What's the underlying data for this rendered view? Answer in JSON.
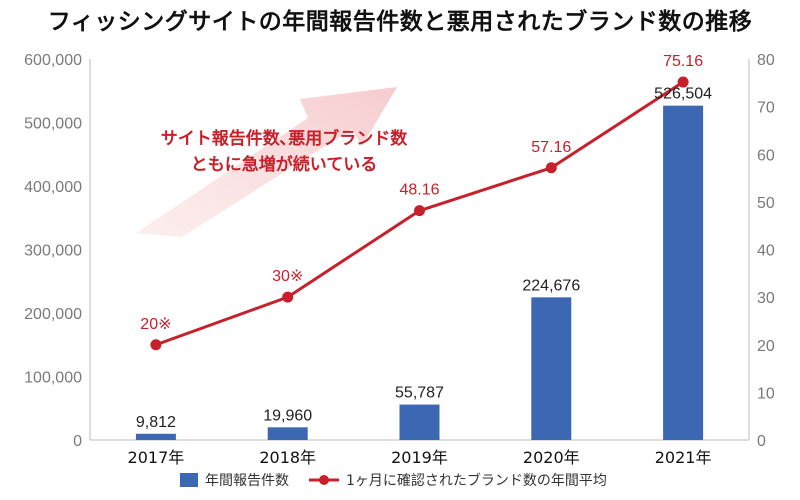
{
  "chart_data": {
    "type": "bar",
    "title": "フィッシングサイトの年間報告件数と悪用されたブランド数の推移",
    "categories": [
      "2017年",
      "2018年",
      "2019年",
      "2020年",
      "2021年"
    ],
    "series": [
      {
        "name": "年間報告件数",
        "type": "bar",
        "axis": "left",
        "color": "#3b67b3",
        "values": [
          9812,
          19960,
          55787,
          224676,
          526504
        ],
        "labels": [
          "9,812",
          "19,960",
          "55,787",
          "224,676",
          "526,504"
        ]
      },
      {
        "name": "1ヶ月に確認されたブランド数の年間平均",
        "type": "line",
        "axis": "right",
        "color": "#c8202a",
        "values": [
          20,
          30,
          48.16,
          57.16,
          75.16
        ],
        "labels": [
          "20※",
          "30※",
          "48.16",
          "57.16",
          "75.16"
        ]
      }
    ],
    "ylim_left": [
      0,
      600000
    ],
    "ylim_right": [
      0,
      80
    ],
    "yticks_left": [
      "0",
      "100,000",
      "200,000",
      "300,000",
      "400,000",
      "500,000",
      "600,000"
    ],
    "yticks_right": [
      "0",
      "10",
      "20",
      "30",
      "40",
      "50",
      "60",
      "70",
      "80"
    ],
    "annotation": [
      "サイト報告件数､悪用ブランド数",
      "ともに急増が続いている"
    ],
    "annotation_color": "#c8202a",
    "grid": false,
    "legend_position": "bottom"
  }
}
